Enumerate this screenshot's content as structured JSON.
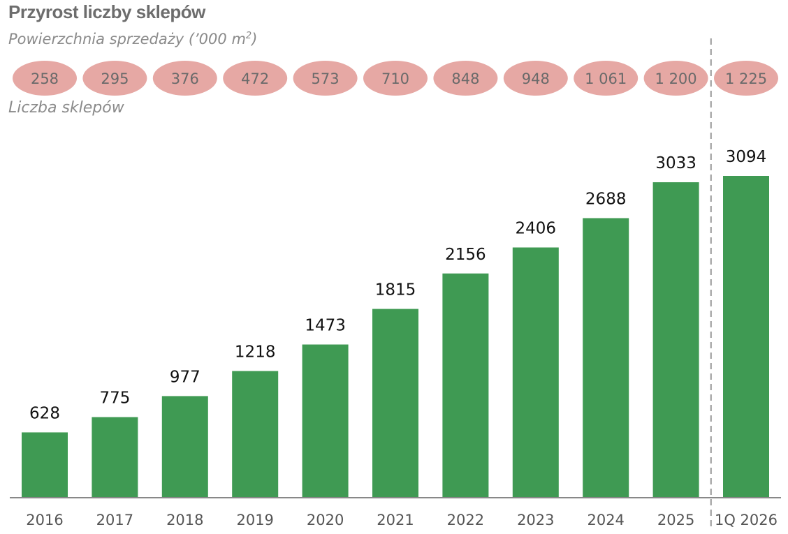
{
  "chart_data": {
    "type": "bar",
    "title": "Przyrost liczby sklepów",
    "subtitle_prefix": "Powierzchnia sprzedaży (’000 m",
    "subtitle_sup": "2",
    "subtitle_suffix": ")",
    "count_label": "Liczba sklepów",
    "categories": [
      "2016",
      "2017",
      "2018",
      "2019",
      "2020",
      "2021",
      "2022",
      "2023",
      "2024",
      "2025",
      "1Q 2026"
    ],
    "values": [
      628,
      775,
      977,
      1218,
      1473,
      1815,
      2156,
      2406,
      2688,
      3033,
      3094
    ],
    "area_labels": [
      "258",
      "295",
      "376",
      "472",
      "573",
      "710",
      "848",
      "948",
      "1 061",
      "1 200",
      "1 225"
    ],
    "ylim": [
      0,
      3300
    ],
    "grid": false,
    "colors": {
      "bar": "#3f9a53",
      "bubble": "#e6a8a4",
      "divider": "#999999",
      "axis": "#888888"
    }
  }
}
